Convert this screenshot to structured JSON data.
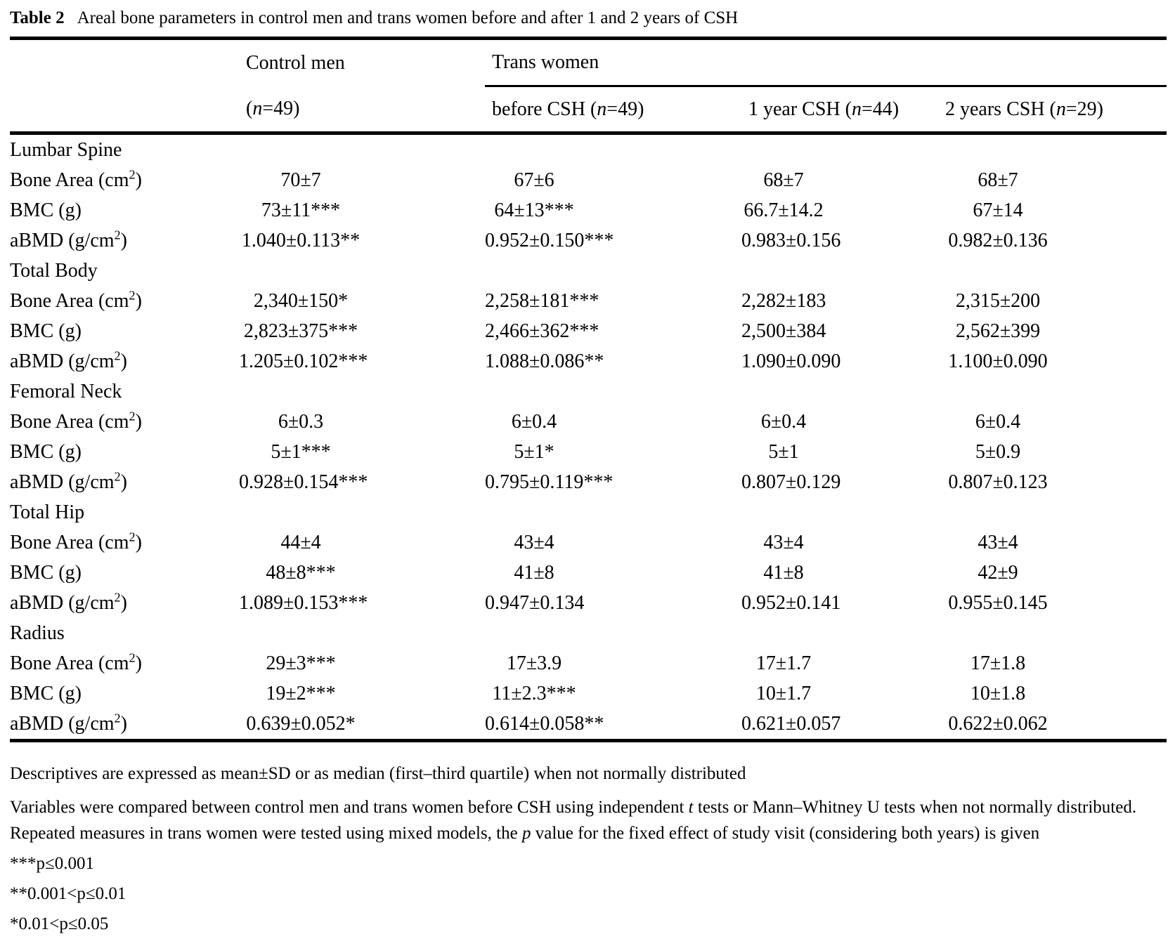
{
  "page": {
    "title_label": "Table 2",
    "title_text": "Areal bone parameters in control men and trans women before and after 1 and 2 years of CSH"
  },
  "table": {
    "col_group_1": "Control men",
    "col_group_2": "Trans women",
    "subheaders": [
      {
        "pre": "(",
        "n": "n",
        "post": "=49)"
      },
      {
        "pre": "before CSH (",
        "n": "n",
        "post": "=49)"
      },
      {
        "pre": "1 year CSH (",
        "n": "n",
        "post": "=44)"
      },
      {
        "pre": "2 years CSH (",
        "n": "n",
        "post": "=29)"
      }
    ],
    "sections": [
      {
        "title": "Lumbar Spine",
        "rows": [
          {
            "label": "Bone Area (cm",
            "label_sup": "2",
            "label_close": ")",
            "values": [
              "70±7",
              "67±6",
              "68±7",
              "68±7"
            ]
          },
          {
            "label": "BMC (g)",
            "values": [
              "73±11***",
              "64±13***",
              "66.7±14.2",
              "67±14"
            ]
          },
          {
            "label": "aBMD (g/cm",
            "label_sup": "2",
            "label_close": ")",
            "values": [
              "1.040±0.113**",
              "0.952±0.150***",
              "0.983±0.156",
              "0.982±0.136"
            ]
          }
        ]
      },
      {
        "title": "Total Body",
        "rows": [
          {
            "label": "Bone Area (cm",
            "label_sup": "2",
            "label_close": ")",
            "values": [
              "2,340±150*",
              "2,258±181***",
              "2,282±183",
              "2,315±200"
            ]
          },
          {
            "label": "BMC (g)",
            "values": [
              "2,823±375***",
              "2,466±362***",
              "2,500±384",
              "2,562±399"
            ]
          },
          {
            "label": "aBMD (g/cm",
            "label_sup": "2",
            "label_close": ")",
            "values": [
              "1.205±0.102***",
              "1.088±0.086**",
              "1.090±0.090",
              "1.100±0.090"
            ]
          }
        ]
      },
      {
        "title": "Femoral Neck",
        "rows": [
          {
            "label": "Bone Area (cm",
            "label_sup": "2",
            "label_close": ")",
            "values": [
              "6±0.3",
              "6±0.4",
              "6±0.4",
              "6±0.4"
            ]
          },
          {
            "label": "BMC (g)",
            "values": [
              "5±1***",
              "5±1*",
              "5±1",
              "5±0.9"
            ]
          },
          {
            "label": "aBMD (g/cm",
            "label_sup": "2",
            "label_close": ")",
            "values": [
              "0.928±0.154***",
              "0.795±0.119***",
              "0.807±0.129",
              "0.807±0.123"
            ]
          }
        ]
      },
      {
        "title": "Total Hip",
        "rows": [
          {
            "label": "Bone Area (cm",
            "label_sup": "2",
            "label_close": ")",
            "values": [
              "44±4",
              "43±4",
              "43±4",
              "43±4"
            ]
          },
          {
            "label": "BMC (g)",
            "values": [
              "48±8***",
              "41±8",
              "41±8",
              "42±9"
            ]
          },
          {
            "label": "aBMD (g/cm",
            "label_sup": "2",
            "label_close": ")",
            "values": [
              "1.089±0.153***",
              "0.947±0.134",
              "0.952±0.141",
              "0.955±0.145"
            ]
          }
        ]
      },
      {
        "title": "Radius",
        "rows": [
          {
            "label": "Bone Area (cm",
            "label_sup": "2",
            "label_close": ")",
            "values": [
              "29±3***",
              "17±3.9",
              "17±1.7",
              "17±1.8"
            ]
          },
          {
            "label": "BMC (g)",
            "values": [
              "19±2***",
              "11±2.3***",
              "10±1.7",
              "10±1.8"
            ]
          },
          {
            "label": "aBMD (g/cm",
            "label_sup": "2",
            "label_close": ")",
            "values": [
              "0.639±0.052*",
              "0.614±0.058**",
              "0.621±0.057",
              "0.622±0.062"
            ]
          }
        ]
      }
    ]
  },
  "footnotes": {
    "fn1": "Descriptives are expressed as mean±SD or as median (first–third quartile) when not normally distributed",
    "fn2_segments": [
      {
        "t": "Variables were compared between control men and trans women before CSH using independent ",
        "f": "n"
      },
      {
        "t": "t",
        "f": "i"
      },
      {
        "t": " tests or Mann–Whitney U tests when not normally distributed. Repeated measures in trans women were tested using mixed models, the ",
        "f": "n"
      },
      {
        "t": "p",
        "f": "i"
      },
      {
        "t": " value for the fixed effect of study visit (considering both years) is given",
        "f": "n"
      }
    ],
    "sig_3star": "***p≤0.001",
    "sig_2star": "**0.001<p≤0.01",
    "sig_1star": "*0.01<p≤0.05"
  }
}
